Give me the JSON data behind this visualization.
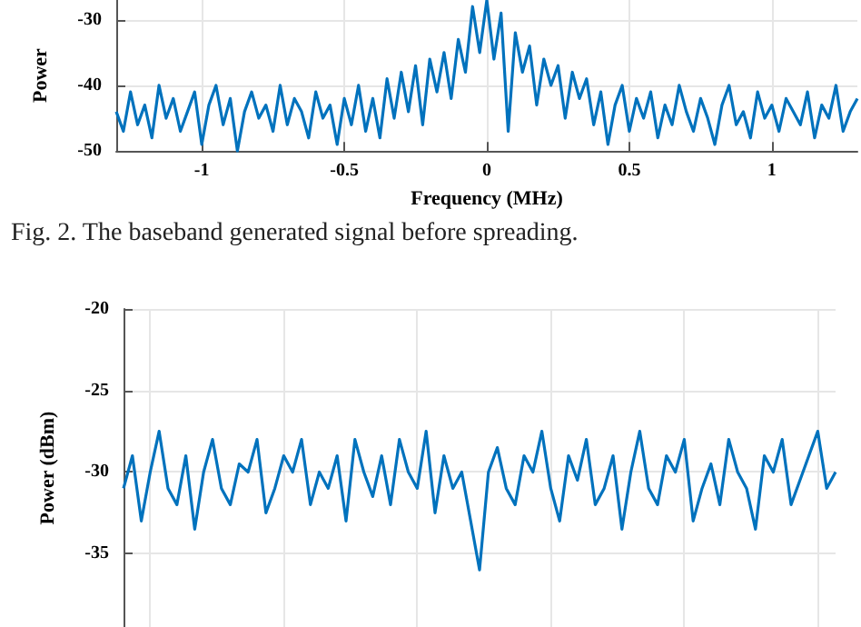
{
  "chart_data": [
    {
      "type": "line",
      "ylabel": "Power",
      "xlabel": "Frequency (MHz)",
      "annotations": [
        "Fig. 2. The baseband generated signal before spreading."
      ],
      "x": [
        -1.3,
        -1.275,
        -1.25,
        -1.225,
        -1.2,
        -1.175,
        -1.15,
        -1.125,
        -1.1,
        -1.075,
        -1.05,
        -1.025,
        -1,
        -0.975,
        -0.95,
        -0.925,
        -0.9,
        -0.875,
        -0.85,
        -0.825,
        -0.8,
        -0.775,
        -0.75,
        -0.725,
        -0.7,
        -0.675,
        -0.65,
        -0.625,
        -0.6,
        -0.575,
        -0.55,
        -0.525,
        -0.5,
        -0.475,
        -0.45,
        -0.425,
        -0.4,
        -0.375,
        -0.35,
        -0.325,
        -0.3,
        -0.275,
        -0.25,
        -0.225,
        -0.2,
        -0.175,
        -0.15,
        -0.125,
        -0.1,
        -0.075,
        -0.05,
        -0.025,
        0,
        0.025,
        0.05,
        0.075,
        0.1,
        0.125,
        0.15,
        0.175,
        0.2,
        0.225,
        0.25,
        0.275,
        0.3,
        0.325,
        0.35,
        0.375,
        0.4,
        0.425,
        0.45,
        0.475,
        0.5,
        0.525,
        0.55,
        0.575,
        0.6,
        0.625,
        0.65,
        0.675,
        0.7,
        0.725,
        0.75,
        0.775,
        0.8,
        0.825,
        0.85,
        0.875,
        0.9,
        0.925,
        0.95,
        0.975,
        1,
        1.025,
        1.05,
        1.075,
        1.1,
        1.125,
        1.15,
        1.175,
        1.2,
        1.225,
        1.25,
        1.275,
        1.3
      ],
      "series": [
        {
          "color": "#0072bd",
          "values": [
            -44,
            -47,
            -41,
            -46,
            -43,
            -48,
            -40,
            -45,
            -42,
            -47,
            -44,
            -41,
            -49,
            -43,
            -40,
            -46,
            -42,
            -50,
            -44,
            -41,
            -45,
            -43,
            -47,
            -40,
            -46,
            -42,
            -44,
            -48,
            -41,
            -45,
            -43,
            -49,
            -42,
            -46,
            -40,
            -47,
            -42,
            -48,
            -39,
            -45,
            -38,
            -44,
            -37,
            -46,
            -36,
            -41,
            -35,
            -42,
            -33,
            -38,
            -28,
            -35,
            -27,
            -36,
            -29,
            -47,
            -32,
            -38,
            -34,
            -43,
            -36,
            -40,
            -37,
            -45,
            -38,
            -42,
            -39,
            -46,
            -41,
            -49,
            -43,
            -40,
            -47,
            -42,
            -45,
            -41,
            -48,
            -43,
            -46,
            -40,
            -44,
            -47,
            -42,
            -45,
            -49,
            -43,
            -40,
            -46,
            -44,
            -48,
            -41,
            -45,
            -43,
            -47,
            -42,
            -44,
            -46,
            -41,
            -48,
            -43,
            -45,
            -40,
            -47,
            -44,
            -42
          ]
        }
      ],
      "xlim": [
        -1.3,
        1.3
      ],
      "xticks": [
        -1,
        -0.5,
        0,
        0.5,
        1
      ],
      "ylim": [
        -50,
        -27
      ],
      "yticks": [
        -50,
        -40,
        -30
      ],
      "grid": true,
      "marker": "none",
      "line_style": "solid"
    },
    {
      "type": "line",
      "ylabel": "Power (dBm)",
      "categories": [
        null,
        null,
        null,
        null,
        null,
        null,
        null,
        null,
        null,
        null,
        null,
        null,
        null,
        null,
        null,
        null,
        null,
        null,
        null,
        null,
        null,
        null,
        null,
        null,
        null,
        null,
        null,
        null,
        null,
        null,
        null,
        null,
        null,
        null,
        null,
        null,
        null,
        null,
        null,
        null,
        null,
        null,
        null,
        null,
        null,
        null,
        null,
        null,
        null,
        null,
        null,
        null,
        null,
        null,
        null,
        null,
        null,
        null,
        null,
        null,
        null,
        null,
        null,
        null,
        null,
        null,
        null,
        null,
        null,
        null,
        null,
        null,
        null,
        null,
        null,
        null,
        null,
        null,
        null,
        null,
        null
      ],
      "series": [
        {
          "color": "#0072bd",
          "values": [
            -31,
            -29,
            -33,
            -30,
            -27.5,
            -31,
            -32,
            -29,
            -33.5,
            -30,
            -28,
            -31,
            -32,
            -29.5,
            -30,
            -28,
            -32.5,
            -31,
            -29,
            -30,
            -28,
            -32,
            -30,
            -31,
            -29,
            -33,
            -28,
            -30,
            -31.5,
            -29,
            -32,
            -28,
            -30,
            -31,
            -27.5,
            -32.5,
            -29,
            -31,
            -30,
            -33,
            -36,
            -30,
            -28.5,
            -31,
            -32,
            -29,
            -30,
            -27.5,
            -31,
            -33,
            -29,
            -30.5,
            -28,
            -32,
            -31,
            -29,
            -33.5,
            -30,
            -27.5,
            -31,
            -32,
            -29,
            -30,
            -28,
            -33,
            -31,
            -29.5,
            -32,
            -28,
            -30,
            -31,
            -33.5,
            -29,
            -30,
            -28,
            -32,
            -30.5,
            -29,
            -27.5,
            -31,
            -30
          ]
        }
      ],
      "ylim": [
        -39.5,
        -20
      ],
      "yticks": [
        -20,
        -25,
        -30,
        -35
      ],
      "grid": true,
      "tick_labels": "y",
      "marker": "none",
      "line_style": "solid"
    }
  ]
}
